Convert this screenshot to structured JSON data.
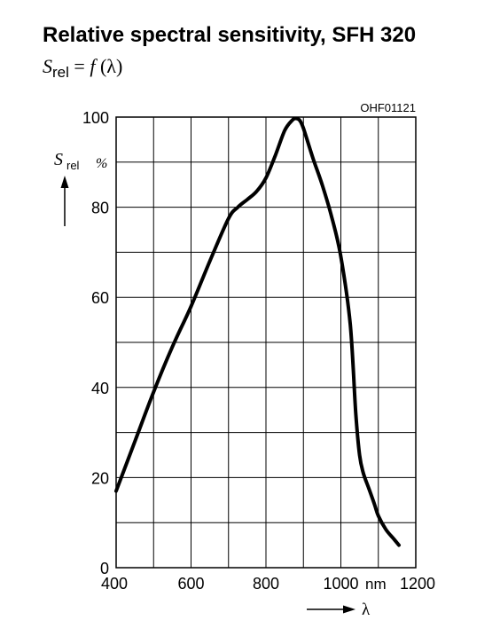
{
  "title": "Relative spectral sensitivity, SFH 320",
  "formula": {
    "symbol": "S",
    "subscript": "rel",
    "equals": " = ",
    "func": "f",
    "arg": " (λ)"
  },
  "chart_data": {
    "type": "line",
    "code": "OHF01121",
    "y_symbol": "S",
    "y_subscript": "rel",
    "y_unit": "%",
    "x_symbol": "λ",
    "x_unit": "nm",
    "xlim": [
      400,
      1200
    ],
    "ylim": [
      0,
      100
    ],
    "x_ticks": [
      400,
      600,
      800,
      1000,
      1200
    ],
    "y_ticks": [
      0,
      20,
      40,
      60,
      80,
      100
    ],
    "x_grid_step": 100,
    "y_grid_step": 10,
    "grid": true,
    "series": [
      {
        "x": [
          400,
          450,
          500,
          550,
          600,
          650,
          700,
          725,
          750,
          775,
          800,
          825,
          850,
          870,
          880,
          890,
          900,
          925,
          950,
          975,
          1000,
          1025,
          1040,
          1050,
          1060,
          1075,
          1090,
          1100,
          1120,
          1140,
          1155
        ],
        "y": [
          17,
          28,
          39,
          49,
          58,
          68,
          77.5,
          80,
          81.7,
          83.5,
          86.5,
          91.5,
          97,
          99.3,
          99.7,
          99.3,
          97.5,
          91,
          85,
          78,
          69,
          54,
          34,
          25,
          21,
          17.5,
          14,
          11.5,
          8.5,
          6.5,
          5
        ]
      }
    ]
  }
}
